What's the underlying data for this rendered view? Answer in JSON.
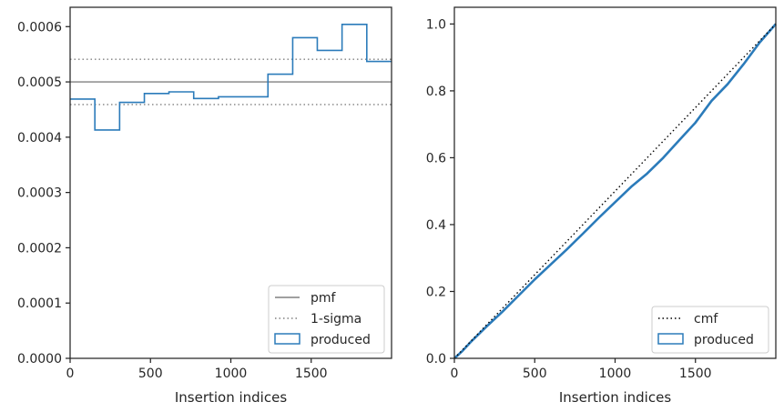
{
  "chart_data": [
    {
      "type": "line",
      "subtype": "step-histogram",
      "xlabel": "Insertion indices",
      "ylabel": "",
      "xlim": [
        0,
        2000
      ],
      "ylim": [
        0,
        0.000635
      ],
      "xticks": [
        0,
        500,
        1000,
        1500
      ],
      "yticks": [
        0,
        0.0001,
        0.0002,
        0.0003,
        0.0004,
        0.0005,
        0.0006
      ],
      "ytick_labels": [
        "0.0000",
        "0.0001",
        "0.0002",
        "0.0003",
        "0.0004",
        "0.0005",
        "0.0006"
      ],
      "grid": false,
      "legend_position": "lower-right",
      "series": [
        {
          "name": "pmf",
          "style": "solid",
          "color": "#808080",
          "value": 0.0005
        },
        {
          "name": "1-sigma",
          "style": "dotted",
          "color": "#808080",
          "values": [
            0.000459,
            0.000541
          ]
        },
        {
          "name": "produced",
          "style": "step",
          "color": "#2b7bba",
          "bin_edges": [
            0,
            154,
            308,
            462,
            615,
            769,
            923,
            1077,
            1231,
            1385,
            1538,
            1692,
            1846,
            2000
          ],
          "values": [
            0.000469,
            0.000413,
            0.000463,
            0.000479,
            0.000482,
            0.00047,
            0.000473,
            0.000473,
            0.000514,
            0.00058,
            0.000557,
            0.000604,
            0.000537
          ]
        }
      ]
    },
    {
      "type": "line",
      "xlabel": "Insertion indices",
      "ylabel": "",
      "xlim": [
        0,
        2000
      ],
      "ylim": [
        0,
        1.05
      ],
      "xticks": [
        0,
        500,
        1000,
        1500
      ],
      "yticks": [
        0,
        0.2,
        0.4,
        0.6,
        0.8,
        1.0
      ],
      "ytick_labels": [
        "0.0",
        "0.2",
        "0.4",
        "0.6",
        "0.8",
        "1.0"
      ],
      "grid": false,
      "legend_position": "lower-right",
      "series": [
        {
          "name": "cmf",
          "style": "dotted",
          "color": "#000000",
          "x": [
            0,
            2000
          ],
          "y": [
            0,
            1.0
          ]
        },
        {
          "name": "produced",
          "style": "solid",
          "color": "#2b7bba",
          "x": [
            0,
            50,
            100,
            200,
            300,
            400,
            500,
            600,
            700,
            800,
            900,
            1000,
            1100,
            1200,
            1300,
            1400,
            1500,
            1600,
            1700,
            1800,
            1900,
            2000
          ],
          "y": [
            0,
            0.022,
            0.048,
            0.095,
            0.14,
            0.188,
            0.236,
            0.281,
            0.326,
            0.373,
            0.421,
            0.467,
            0.513,
            0.553,
            0.6,
            0.653,
            0.705,
            0.77,
            0.82,
            0.88,
            0.945,
            1.0
          ]
        }
      ]
    }
  ]
}
